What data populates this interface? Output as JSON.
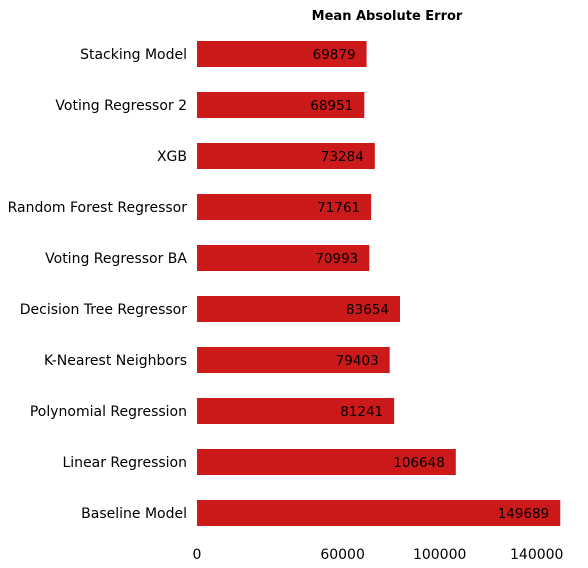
{
  "chart_data": {
    "type": "bar",
    "orientation": "horizontal",
    "title": "Mean Absolute Error",
    "xlabel": "",
    "ylabel": "",
    "categories": [
      "Stacking Model",
      "Voting Regressor 2",
      "XGB",
      "Random Forest Regressor",
      "Voting Regressor BA",
      "Decision Tree Regressor",
      "K-Nearest Neighbors",
      "Polynomial Regression",
      "Linear Regression",
      "Baseline Model"
    ],
    "values": [
      69879,
      68951,
      73284,
      71761,
      70993,
      83654,
      79403,
      81241,
      106648,
      149689
    ],
    "data_labels": [
      "69879",
      "68951",
      "73284",
      "71761",
      "70993",
      "83654",
      "79403",
      "81241",
      "106648",
      "149689"
    ],
    "xlim": [
      0,
      150000
    ],
    "x_ticks": [
      0,
      60000,
      100000,
      140000
    ],
    "x_tick_labels": [
      "0",
      "60000",
      "100000",
      "140000"
    ],
    "bar_color": "#cc1a1a",
    "grid": false,
    "legend": "none"
  }
}
